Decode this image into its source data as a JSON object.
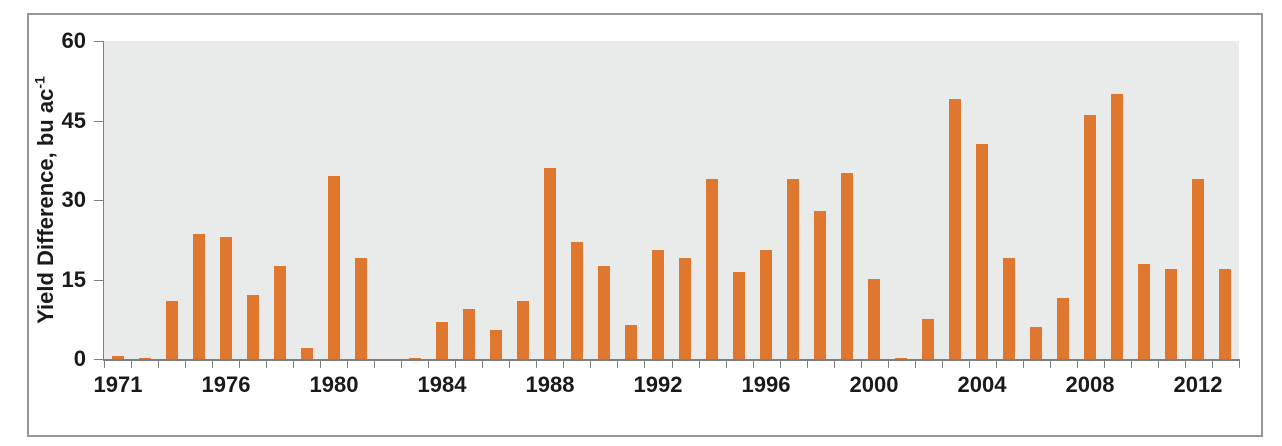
{
  "chart_data": {
    "type": "bar",
    "title": "",
    "xlabel": "",
    "ylabel": "Yield Difference, bu ac-1",
    "ylabel_main": "Yield Difference, bu ac",
    "ylabel_superscript": "-1",
    "ylim": [
      0,
      60
    ],
    "yticks": [
      0,
      15,
      30,
      45,
      60
    ],
    "grid": false,
    "legend": false,
    "categories": [
      "1971",
      "1972",
      "1973",
      "1975",
      "1976",
      "1977",
      "1978",
      "1979",
      "1980",
      "1981",
      "1982",
      "1983",
      "1984",
      "1985",
      "1986",
      "1987",
      "1988",
      "1989",
      "1990",
      "1991",
      "1992",
      "1993",
      "1994",
      "1995",
      "1996",
      "1997",
      "1998",
      "1999",
      "2000",
      "2001",
      "2002",
      "2003",
      "2004",
      "2005",
      "2006",
      "2007",
      "2008",
      "2009",
      "2010",
      "2011",
      "2012",
      "2013"
    ],
    "values": [
      0.5,
      0.2,
      11,
      23.5,
      23,
      12,
      17.5,
      2,
      34.5,
      19,
      0,
      0.2,
      7,
      9.5,
      5.5,
      11,
      36,
      22,
      17.5,
      6.5,
      20.5,
      19,
      34,
      16.5,
      20.5,
      34,
      28,
      35,
      15,
      0.2,
      7.5,
      49,
      40.5,
      19,
      6,
      11.5,
      46,
      50,
      18,
      17,
      34,
      17
    ],
    "xtick_labels": [
      "1971",
      "1976",
      "1980",
      "1984",
      "1988",
      "1992",
      "1996",
      "2000",
      "2004",
      "2008",
      "2012"
    ],
    "xtick_indices": [
      0,
      4,
      8,
      12,
      16,
      20,
      24,
      28,
      32,
      36,
      40
    ]
  },
  "colors": {
    "bar": "#E0772E",
    "plot_background": "#E9EAEA",
    "axis_line": "#7F7F7F",
    "frame_border": "#969696",
    "text": "#1A1A1A",
    "page_background": "#FFFFFF"
  }
}
